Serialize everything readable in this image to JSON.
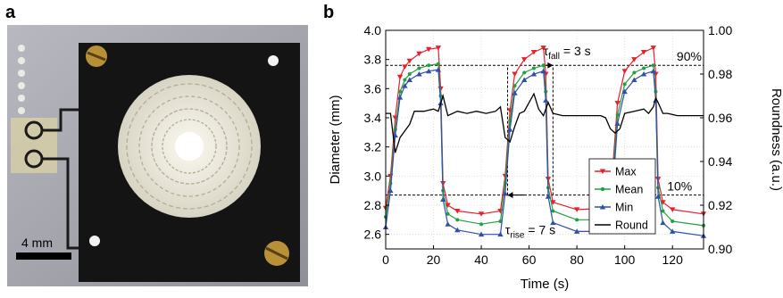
{
  "panel_a": {
    "letter": "a",
    "scale_bar_label": "4 mm"
  },
  "panel_b": {
    "letter": "b"
  },
  "chart_data": {
    "type": "line",
    "xlabel": "Time (s)",
    "ylabel_left": "Diameter (mm)",
    "ylabel_right": "Roundness (a.u.)",
    "xlim": [
      0,
      133
    ],
    "ylim_left": [
      2.5,
      4.0
    ],
    "ylim_right": [
      0.9,
      1.0
    ],
    "xticks": [
      0,
      20,
      40,
      60,
      80,
      100,
      120
    ],
    "yticks_left": [
      2.6,
      2.8,
      3.0,
      3.2,
      3.4,
      3.6,
      3.8,
      4.0
    ],
    "yticks_right": [
      0.9,
      0.92,
      0.94,
      0.96,
      0.98,
      1.0
    ],
    "grid": true,
    "legend_position": "center-right",
    "colors": {
      "max": "#e8202a",
      "mean": "#22a040",
      "min": "#2f4fa8",
      "round": "#000000"
    },
    "series": [
      {
        "name": "Max",
        "axis": "left",
        "x": [
          0,
          2,
          4,
          6,
          8,
          10,
          14,
          18,
          22,
          23,
          24,
          26,
          30,
          40,
          48,
          50,
          52,
          54,
          58,
          62,
          66,
          67,
          68,
          70,
          80,
          93,
          95,
          97,
          100,
          104,
          108,
          112,
          113,
          114,
          116,
          120,
          133
        ],
        "y": [
          2.78,
          3.0,
          3.4,
          3.68,
          3.75,
          3.79,
          3.84,
          3.87,
          3.88,
          3.6,
          2.95,
          2.8,
          2.76,
          2.74,
          2.76,
          3.0,
          3.45,
          3.7,
          3.8,
          3.85,
          3.88,
          3.7,
          2.98,
          2.82,
          2.77,
          2.78,
          3.05,
          3.5,
          3.72,
          3.8,
          3.85,
          3.88,
          3.7,
          2.98,
          2.82,
          2.77,
          2.74
        ]
      },
      {
        "name": "Mean",
        "axis": "left",
        "x": [
          0,
          2,
          4,
          6,
          8,
          10,
          14,
          18,
          22,
          23,
          24,
          26,
          30,
          40,
          48,
          50,
          52,
          54,
          58,
          62,
          66,
          67,
          68,
          70,
          80,
          93,
          95,
          97,
          100,
          104,
          108,
          112,
          113,
          114,
          116,
          120,
          133
        ],
        "y": [
          2.72,
          2.95,
          3.32,
          3.58,
          3.66,
          3.7,
          3.74,
          3.76,
          3.77,
          3.55,
          2.9,
          2.74,
          2.7,
          2.67,
          2.69,
          2.95,
          3.38,
          3.62,
          3.71,
          3.74,
          3.76,
          3.58,
          2.92,
          2.76,
          2.7,
          2.7,
          2.98,
          3.42,
          3.63,
          3.71,
          3.74,
          3.76,
          3.58,
          2.92,
          2.76,
          2.69,
          2.66
        ]
      },
      {
        "name": "Min",
        "axis": "left",
        "x": [
          0,
          2,
          4,
          6,
          8,
          10,
          14,
          18,
          22,
          23,
          24,
          26,
          30,
          40,
          48,
          50,
          52,
          54,
          58,
          62,
          66,
          67,
          68,
          70,
          80,
          93,
          95,
          97,
          100,
          104,
          108,
          112,
          113,
          114,
          116,
          120,
          133
        ],
        "y": [
          2.65,
          2.9,
          3.28,
          3.54,
          3.62,
          3.66,
          3.7,
          3.72,
          3.73,
          3.5,
          2.84,
          2.67,
          2.63,
          2.6,
          2.6,
          2.88,
          3.32,
          3.57,
          3.66,
          3.7,
          3.72,
          3.52,
          2.86,
          2.68,
          2.62,
          2.62,
          2.9,
          3.36,
          3.58,
          3.66,
          3.7,
          3.72,
          3.52,
          2.86,
          2.68,
          2.62,
          2.59
        ]
      },
      {
        "name": "Round",
        "axis": "right",
        "x": [
          0,
          2,
          4,
          6,
          8,
          10,
          12,
          16,
          20,
          22,
          24,
          26,
          30,
          34,
          38,
          42,
          46,
          48,
          50,
          52,
          54,
          56,
          58,
          60,
          62,
          64,
          66,
          68,
          70,
          74,
          80,
          86,
          90,
          92,
          94,
          96,
          98,
          100,
          104,
          108,
          110,
          112,
          113,
          114,
          116,
          118,
          122,
          133
        ],
        "y": [
          0.962,
          0.962,
          0.944,
          0.951,
          0.954,
          0.957,
          0.963,
          0.963,
          0.964,
          0.963,
          0.97,
          0.961,
          0.963,
          0.962,
          0.963,
          0.962,
          0.963,
          0.965,
          0.951,
          0.949,
          0.956,
          0.962,
          0.963,
          0.967,
          0.971,
          0.964,
          0.961,
          0.967,
          0.962,
          0.961,
          0.961,
          0.961,
          0.961,
          0.96,
          0.955,
          0.953,
          0.955,
          0.962,
          0.963,
          0.964,
          0.962,
          0.965,
          0.969,
          0.967,
          0.962,
          0.962,
          0.961,
          0.961
        ]
      }
    ],
    "annotations": [
      {
        "type": "hline",
        "y": 3.76,
        "x0": 0,
        "x1": 133,
        "label": "90%",
        "label_x": 127
      },
      {
        "type": "hline",
        "y": 2.87,
        "x0": 0,
        "x1": 133,
        "label": "10%",
        "label_x": 123
      },
      {
        "type": "text",
        "base": "τ",
        "sub": "fall",
        "rest": " = 3 s",
        "x": 66,
        "y": 3.83
      },
      {
        "type": "text",
        "base": "τ",
        "sub": "rise",
        "rest": " = 7 s",
        "x": 50,
        "y": 2.6
      },
      {
        "type": "vline",
        "x": 51,
        "y0": 2.87,
        "y1": 3.76
      },
      {
        "type": "vline",
        "x": 70,
        "y0": 2.87,
        "y1": 3.76
      },
      {
        "type": "arrow",
        "x0": 58,
        "x1": 51,
        "y": 2.87
      },
      {
        "type": "arrow",
        "x0": 66,
        "x1": 70,
        "y": 3.76
      }
    ]
  }
}
